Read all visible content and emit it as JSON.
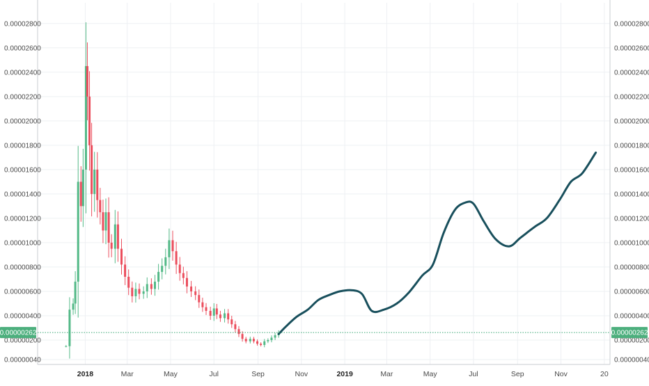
{
  "chart_data": {
    "type": "line",
    "price_scale": {
      "y_ticks": [
        "0.00002800",
        "0.00002600",
        "0.00002400",
        "0.00002200",
        "0.00002000",
        "0.00001800",
        "0.00001600",
        "0.00001400",
        "0.00001200",
        "0.00001000",
        "0.00000800",
        "0.00000600",
        "0.00000400",
        "0.00000200",
        "0.00000040"
      ],
      "y_tick_values": [
        2.8e-05,
        2.6e-05,
        2.4e-05,
        2.2e-05,
        2e-05,
        1.8e-05,
        1.6e-05,
        1.4e-05,
        1.2e-05,
        1e-05,
        8e-06,
        6e-06,
        4e-06,
        2e-06,
        4e-07
      ],
      "ylim": [
        0.0,
        2.97e-05
      ]
    },
    "time_scale": {
      "x_ticks": [
        {
          "label": "2018",
          "date": "2018-01-01",
          "bold": true
        },
        {
          "label": "Mar",
          "date": "2018-03-01",
          "bold": false
        },
        {
          "label": "May",
          "date": "2018-05-01",
          "bold": false
        },
        {
          "label": "Jul",
          "date": "2018-07-01",
          "bold": false
        },
        {
          "label": "Sep",
          "date": "2018-09-01",
          "bold": false
        },
        {
          "label": "Nov",
          "date": "2018-11-01",
          "bold": false
        },
        {
          "label": "2019",
          "date": "2019-01-01",
          "bold": true
        },
        {
          "label": "Mar",
          "date": "2019-03-01",
          "bold": false
        },
        {
          "label": "May",
          "date": "2019-05-01",
          "bold": false
        },
        {
          "label": "Jul",
          "date": "2019-07-01",
          "bold": false
        },
        {
          "label": "Sep",
          "date": "2019-09-01",
          "bold": false
        },
        {
          "label": "Nov",
          "date": "2019-11-01",
          "bold": false
        },
        {
          "label": "20",
          "date": "2020-01-01",
          "bold": false
        }
      ],
      "xlim": [
        "2017-10-26",
        "2020-01-09"
      ]
    },
    "last_price": {
      "label": "0.00000262",
      "value": 2.62e-06
    },
    "grid": true,
    "series": [
      {
        "type": "candlestick",
        "up_color": "#53b987",
        "down_color": "#eb4d5c",
        "points": [
          {
            "x": "2017-12-05",
            "y": 1.5e-06
          },
          {
            "x": "2017-12-10",
            "y": 4.5e-06
          },
          {
            "x": "2017-12-15",
            "y": 5e-06
          },
          {
            "x": "2017-12-18",
            "y": 6.8e-06
          },
          {
            "x": "2017-12-22",
            "y": 1.5e-05
          },
          {
            "x": "2017-12-26",
            "y": 1.3e-05
          },
          {
            "x": "2017-12-29",
            "y": 1.6e-05
          },
          {
            "x": "2018-01-02",
            "y": 2.45e-05
          },
          {
            "x": "2018-01-04",
            "y": 2.2e-05
          },
          {
            "x": "2018-01-07",
            "y": 1.8e-05
          },
          {
            "x": "2018-01-10",
            "y": 1.4e-05
          },
          {
            "x": "2018-01-14",
            "y": 1.6e-05
          },
          {
            "x": "2018-01-18",
            "y": 1.35e-05
          },
          {
            "x": "2018-01-22",
            "y": 1.25e-05
          },
          {
            "x": "2018-01-26",
            "y": 1.1e-05
          },
          {
            "x": "2018-01-30",
            "y": 1.25e-05
          },
          {
            "x": "2018-02-03",
            "y": 1e-05
          },
          {
            "x": "2018-02-07",
            "y": 9.5e-06
          },
          {
            "x": "2018-02-12",
            "y": 1.15e-05
          },
          {
            "x": "2018-02-16",
            "y": 9.5e-06
          },
          {
            "x": "2018-02-21",
            "y": 8.2e-06
          },
          {
            "x": "2018-02-26",
            "y": 7.2e-06
          },
          {
            "x": "2018-03-03",
            "y": 6.3e-06
          },
          {
            "x": "2018-03-08",
            "y": 5.6e-06
          },
          {
            "x": "2018-03-13",
            "y": 6.2e-06
          },
          {
            "x": "2018-03-18",
            "y": 5.8e-06
          },
          {
            "x": "2018-03-24",
            "y": 6e-06
          },
          {
            "x": "2018-03-29",
            "y": 6.6e-06
          },
          {
            "x": "2018-04-04",
            "y": 6.2e-06
          },
          {
            "x": "2018-04-09",
            "y": 6.8e-06
          },
          {
            "x": "2018-04-14",
            "y": 7.6e-06
          },
          {
            "x": "2018-04-19",
            "y": 8.1e-06
          },
          {
            "x": "2018-04-24",
            "y": 8.8e-06
          },
          {
            "x": "2018-04-29",
            "y": 1.02e-05
          },
          {
            "x": "2018-05-04",
            "y": 9.3e-06
          },
          {
            "x": "2018-05-09",
            "y": 8.2e-06
          },
          {
            "x": "2018-05-14",
            "y": 7.5e-06
          },
          {
            "x": "2018-05-19",
            "y": 7.1e-06
          },
          {
            "x": "2018-05-24",
            "y": 6.4e-06
          },
          {
            "x": "2018-05-30",
            "y": 6e-06
          },
          {
            "x": "2018-06-05",
            "y": 5.7e-06
          },
          {
            "x": "2018-06-10",
            "y": 5.1e-06
          },
          {
            "x": "2018-06-15",
            "y": 4.7e-06
          },
          {
            "x": "2018-06-20",
            "y": 4.4e-06
          },
          {
            "x": "2018-06-26",
            "y": 4e-06
          },
          {
            "x": "2018-07-01",
            "y": 4.6e-06
          },
          {
            "x": "2018-07-05",
            "y": 4.1e-06
          },
          {
            "x": "2018-07-10",
            "y": 3.8e-06
          },
          {
            "x": "2018-07-16",
            "y": 4.2e-06
          },
          {
            "x": "2018-07-21",
            "y": 3.7e-06
          },
          {
            "x": "2018-07-26",
            "y": 3.3e-06
          },
          {
            "x": "2018-07-31",
            "y": 2.9e-06
          },
          {
            "x": "2018-08-05",
            "y": 2.5e-06
          },
          {
            "x": "2018-08-10",
            "y": 2.1e-06
          },
          {
            "x": "2018-08-15",
            "y": 1.9e-06
          },
          {
            "x": "2018-08-21",
            "y": 2.1e-06
          },
          {
            "x": "2018-08-26",
            "y": 1.9e-06
          },
          {
            "x": "2018-08-31",
            "y": 1.7e-06
          },
          {
            "x": "2018-09-05",
            "y": 1.6e-06
          },
          {
            "x": "2018-09-10",
            "y": 1.9e-06
          },
          {
            "x": "2018-09-15",
            "y": 2e-06
          },
          {
            "x": "2018-09-20",
            "y": 2.2e-06
          },
          {
            "x": "2018-09-25",
            "y": 2.4e-06
          },
          {
            "x": "2018-09-30",
            "y": 2.6e-06
          }
        ]
      },
      {
        "type": "line",
        "color": "#184f5c",
        "points": [
          {
            "x": "2018-09-30",
            "y": 2.5e-06
          },
          {
            "x": "2018-10-10",
            "y": 3.1e-06
          },
          {
            "x": "2018-10-25",
            "y": 3.9e-06
          },
          {
            "x": "2018-11-10",
            "y": 4.5e-06
          },
          {
            "x": "2018-11-25",
            "y": 5.3e-06
          },
          {
            "x": "2018-12-10",
            "y": 5.7e-06
          },
          {
            "x": "2018-12-25",
            "y": 6e-06
          },
          {
            "x": "2019-01-10",
            "y": 6.1e-06
          },
          {
            "x": "2019-01-25",
            "y": 5.8e-06
          },
          {
            "x": "2019-02-08",
            "y": 4.4e-06
          },
          {
            "x": "2019-02-25",
            "y": 4.5e-06
          },
          {
            "x": "2019-03-15",
            "y": 5e-06
          },
          {
            "x": "2019-04-01",
            "y": 5.9e-06
          },
          {
            "x": "2019-04-20",
            "y": 7.3e-06
          },
          {
            "x": "2019-05-05",
            "y": 8.2e-06
          },
          {
            "x": "2019-05-20",
            "y": 1.08e-05
          },
          {
            "x": "2019-06-05",
            "y": 1.27e-05
          },
          {
            "x": "2019-06-20",
            "y": 1.33e-05
          },
          {
            "x": "2019-07-01",
            "y": 1.32e-05
          },
          {
            "x": "2019-07-15",
            "y": 1.18e-05
          },
          {
            "x": "2019-08-01",
            "y": 1.03e-05
          },
          {
            "x": "2019-08-20",
            "y": 9.7e-06
          },
          {
            "x": "2019-09-05",
            "y": 1.04e-05
          },
          {
            "x": "2019-09-25",
            "y": 1.13e-05
          },
          {
            "x": "2019-10-12",
            "y": 1.2e-05
          },
          {
            "x": "2019-10-30",
            "y": 1.35e-05
          },
          {
            "x": "2019-11-15",
            "y": 1.5e-05
          },
          {
            "x": "2019-12-01",
            "y": 1.57e-05
          },
          {
            "x": "2019-12-20",
            "y": 1.74e-05
          }
        ]
      }
    ]
  }
}
